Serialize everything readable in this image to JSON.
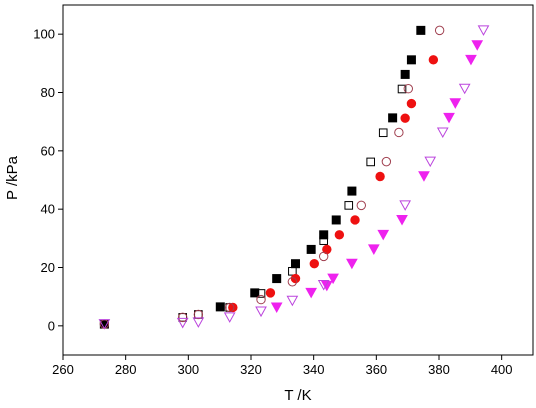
{
  "chart_data": {
    "type": "scatter",
    "title": "",
    "xlabel": "T /K",
    "ylabel": "P /kPa",
    "xlim": [
      260,
      410
    ],
    "ylim": [
      -10,
      110
    ],
    "xticks": [
      260,
      280,
      300,
      320,
      340,
      360,
      380,
      400
    ],
    "yticks": [
      0,
      20,
      40,
      60,
      80,
      100
    ],
    "grid": false,
    "legend": "none",
    "series": [
      {
        "marker": "square-filled",
        "color": "#000000",
        "points": [
          [
            273.2,
            0.6
          ],
          [
            310.2,
            6.5
          ],
          [
            321.2,
            11.3
          ],
          [
            328.2,
            16.2
          ],
          [
            334.2,
            21.3
          ],
          [
            339.2,
            26.2
          ],
          [
            343.2,
            31.2
          ],
          [
            347.2,
            36.3
          ],
          [
            352.2,
            46.2
          ],
          [
            365.2,
            71.3
          ],
          [
            369.2,
            86.2
          ],
          [
            371.2,
            91.2
          ],
          [
            374.2,
            101.3
          ]
        ]
      },
      {
        "marker": "square-open",
        "color": "#000000",
        "points": [
          [
            273.2,
            0.6
          ],
          [
            298.2,
            2.9
          ],
          [
            303.2,
            3.9
          ],
          [
            313.2,
            6.3
          ],
          [
            323.2,
            11.1
          ],
          [
            333.2,
            18.7
          ],
          [
            343.2,
            29.2
          ],
          [
            351.2,
            41.3
          ],
          [
            358.2,
            56.2
          ],
          [
            362.2,
            66.2
          ],
          [
            368.2,
            81.2
          ]
        ]
      },
      {
        "marker": "circle-filled",
        "color": "#ee1111",
        "points": [
          [
            314.2,
            6.3
          ],
          [
            326.2,
            11.3
          ],
          [
            334.2,
            16.2
          ],
          [
            340.2,
            21.3
          ],
          [
            344.2,
            26.2
          ],
          [
            348.2,
            31.2
          ],
          [
            353.2,
            36.3
          ],
          [
            361.2,
            51.2
          ],
          [
            369.2,
            71.2
          ],
          [
            371.2,
            76.2
          ],
          [
            378.2,
            91.2
          ]
        ]
      },
      {
        "marker": "circle-open",
        "color": "#a04050",
        "points": [
          [
            273.2,
            0.6
          ],
          [
            298.2,
            2.9
          ],
          [
            303.2,
            3.9
          ],
          [
            313.2,
            6.3
          ],
          [
            323.2,
            9.0
          ],
          [
            333.2,
            15.1
          ],
          [
            343.2,
            23.8
          ],
          [
            355.2,
            41.3
          ],
          [
            363.2,
            56.3
          ],
          [
            367.2,
            66.3
          ],
          [
            370.2,
            81.3
          ],
          [
            380.2,
            101.3
          ]
        ]
      },
      {
        "marker": "triangle-down-filled",
        "color": "#ee22ee",
        "points": [
          [
            328.2,
            6.3
          ],
          [
            339.2,
            11.3
          ],
          [
            344.2,
            13.7
          ],
          [
            346.2,
            16.2
          ],
          [
            352.2,
            21.3
          ],
          [
            359.2,
            26.2
          ],
          [
            362.2,
            31.2
          ],
          [
            368.2,
            36.3
          ],
          [
            375.2,
            51.3
          ],
          [
            383.2,
            71.3
          ],
          [
            385.2,
            76.3
          ],
          [
            390.2,
            91.2
          ],
          [
            392.2,
            96.2
          ]
        ]
      },
      {
        "marker": "triangle-down-open",
        "color": "#bb44dd",
        "points": [
          [
            273.2,
            0.6
          ],
          [
            298.2,
            1.0
          ],
          [
            303.2,
            1.2
          ],
          [
            313.2,
            2.9
          ],
          [
            323.2,
            4.9
          ],
          [
            333.2,
            8.6
          ],
          [
            343.2,
            14.0
          ],
          [
            369.2,
            41.3
          ],
          [
            377.2,
            56.3
          ],
          [
            381.2,
            66.3
          ],
          [
            388.2,
            81.3
          ],
          [
            394.2,
            101.3
          ]
        ]
      }
    ]
  }
}
